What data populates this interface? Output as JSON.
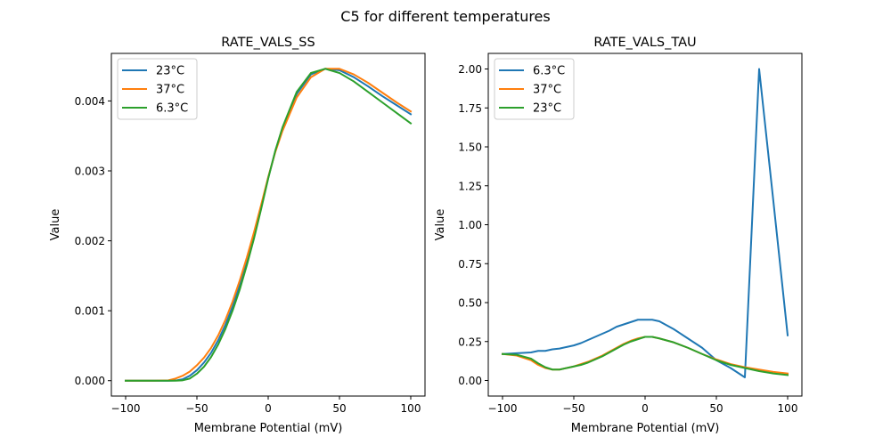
{
  "figure": {
    "suptitle": "C5 for different temperatures"
  },
  "chart_data": [
    {
      "type": "line",
      "title": "RATE_VALS_SS",
      "xlabel": "Membrane Potential (mV)",
      "ylabel": "Value",
      "xlim": [
        -110,
        110
      ],
      "ylim": [
        -0.00022,
        0.00468
      ],
      "xticks": [
        -100,
        -50,
        0,
        50,
        100
      ],
      "xtick_labels": [
        "−100",
        "−50",
        "0",
        "50",
        "100"
      ],
      "yticks": [
        0,
        0.001,
        0.002,
        0.003,
        0.004
      ],
      "ytick_labels": [
        "0.000",
        "0.001",
        "0.002",
        "0.003",
        "0.004"
      ],
      "legend_position": "upper-left",
      "grid": false,
      "series": [
        {
          "name": "23°C",
          "color": "#1f77b4",
          "x": [
            -100,
            -90,
            -80,
            -70,
            -65,
            -60,
            -55,
            -50,
            -45,
            -40,
            -35,
            -30,
            -25,
            -20,
            -15,
            -10,
            -5,
            0,
            5,
            10,
            20,
            30,
            40,
            50,
            60,
            70,
            80,
            90,
            100
          ],
          "y": [
            0,
            0,
            0,
            0,
            2e-06,
            2e-05,
            7e-05,
            0.00015,
            0.00026,
            0.0004,
            0.00058,
            0.0008,
            0.00106,
            0.00136,
            0.0017,
            0.00207,
            0.00248,
            0.0029,
            0.00328,
            0.0036,
            0.0041,
            0.00438,
            0.00446,
            0.00444,
            0.00434,
            0.00421,
            0.00407,
            0.00394,
            0.00381
          ]
        },
        {
          "name": "37°C",
          "color": "#ff7f0e",
          "x": [
            -100,
            -90,
            -80,
            -70,
            -65,
            -60,
            -55,
            -50,
            -45,
            -40,
            -35,
            -30,
            -25,
            -20,
            -15,
            -10,
            -5,
            0,
            5,
            10,
            20,
            30,
            40,
            50,
            60,
            70,
            80,
            90,
            100
          ],
          "y": [
            0,
            0,
            0,
            5e-06,
            3e-05,
            7e-05,
            0.00013,
            0.00022,
            0.00033,
            0.00047,
            0.00065,
            0.00087,
            0.00113,
            0.00143,
            0.00176,
            0.00212,
            0.00251,
            0.00291,
            0.00327,
            0.00357,
            0.00405,
            0.00434,
            0.00446,
            0.00446,
            0.00438,
            0.00426,
            0.00412,
            0.00398,
            0.00385
          ]
        },
        {
          "name": "6.3°C",
          "color": "#2ca02c",
          "x": [
            -100,
            -90,
            -80,
            -70,
            -65,
            -60,
            -55,
            -50,
            -45,
            -40,
            -35,
            -30,
            -25,
            -20,
            -15,
            -10,
            -5,
            0,
            5,
            10,
            20,
            30,
            40,
            50,
            60,
            70,
            80,
            90,
            100
          ],
          "y": [
            0,
            0,
            0,
            0,
            0,
            5e-06,
            3e-05,
            0.0001,
            0.0002,
            0.00034,
            0.00052,
            0.00074,
            0.001,
            0.0013,
            0.00165,
            0.00203,
            0.00245,
            0.00289,
            0.00329,
            0.00362,
            0.00413,
            0.0044,
            0.00446,
            0.0044,
            0.00428,
            0.00413,
            0.00398,
            0.00383,
            0.00368
          ]
        }
      ]
    },
    {
      "type": "line",
      "title": "RATE_VALS_TAU",
      "xlabel": "Membrane Potential (mV)",
      "ylabel": "Value",
      "xlim": [
        -110,
        110
      ],
      "ylim": [
        -0.1,
        2.1
      ],
      "xticks": [
        -100,
        -50,
        0,
        50,
        100
      ],
      "xtick_labels": [
        "−100",
        "−50",
        "0",
        "50",
        "100"
      ],
      "yticks": [
        0,
        0.25,
        0.5,
        0.75,
        1.0,
        1.25,
        1.5,
        1.75,
        2.0
      ],
      "ytick_labels": [
        "0.00",
        "0.25",
        "0.50",
        "0.75",
        "1.00",
        "1.25",
        "1.50",
        "1.75",
        "2.00"
      ],
      "legend_position": "upper-left",
      "grid": false,
      "series": [
        {
          "name": "6.3°C",
          "color": "#1f77b4",
          "x": [
            -100,
            -90,
            -80,
            -75,
            -70,
            -65,
            -60,
            -55,
            -50,
            -45,
            -40,
            -35,
            -30,
            -25,
            -20,
            -15,
            -10,
            -5,
            0,
            5,
            10,
            20,
            30,
            40,
            50,
            60,
            70,
            80,
            90,
            100
          ],
          "y": [
            0.17,
            0.175,
            0.18,
            0.19,
            0.19,
            0.2,
            0.205,
            0.215,
            0.225,
            0.24,
            0.26,
            0.28,
            0.3,
            0.32,
            0.345,
            0.36,
            0.375,
            0.39,
            0.39,
            0.39,
            0.38,
            0.33,
            0.27,
            0.21,
            0.13,
            0.08,
            0.02,
            2.0,
            1.15,
            0.29
          ]
        },
        {
          "name": "37°C",
          "color": "#ff7f0e",
          "x": [
            -100,
            -90,
            -80,
            -75,
            -70,
            -65,
            -60,
            -55,
            -50,
            -45,
            -40,
            -35,
            -30,
            -25,
            -20,
            -15,
            -10,
            -5,
            0,
            5,
            10,
            20,
            30,
            40,
            50,
            60,
            70,
            80,
            90,
            100
          ],
          "y": [
            0.17,
            0.16,
            0.13,
            0.1,
            0.08,
            0.07,
            0.07,
            0.08,
            0.09,
            0.105,
            0.12,
            0.14,
            0.16,
            0.185,
            0.21,
            0.235,
            0.255,
            0.27,
            0.28,
            0.28,
            0.27,
            0.245,
            0.21,
            0.17,
            0.135,
            0.105,
            0.085,
            0.07,
            0.055,
            0.045
          ]
        },
        {
          "name": "23°C",
          "color": "#2ca02c",
          "x": [
            -100,
            -90,
            -80,
            -75,
            -70,
            -65,
            -60,
            -55,
            -50,
            -45,
            -40,
            -35,
            -30,
            -25,
            -20,
            -15,
            -10,
            -5,
            0,
            5,
            10,
            20,
            30,
            40,
            50,
            60,
            70,
            80,
            90,
            100
          ],
          "y": [
            0.17,
            0.165,
            0.14,
            0.11,
            0.085,
            0.07,
            0.07,
            0.08,
            0.09,
            0.1,
            0.115,
            0.135,
            0.155,
            0.18,
            0.205,
            0.23,
            0.25,
            0.265,
            0.28,
            0.28,
            0.27,
            0.245,
            0.21,
            0.17,
            0.13,
            0.1,
            0.08,
            0.06,
            0.045,
            0.035
          ]
        }
      ]
    }
  ]
}
